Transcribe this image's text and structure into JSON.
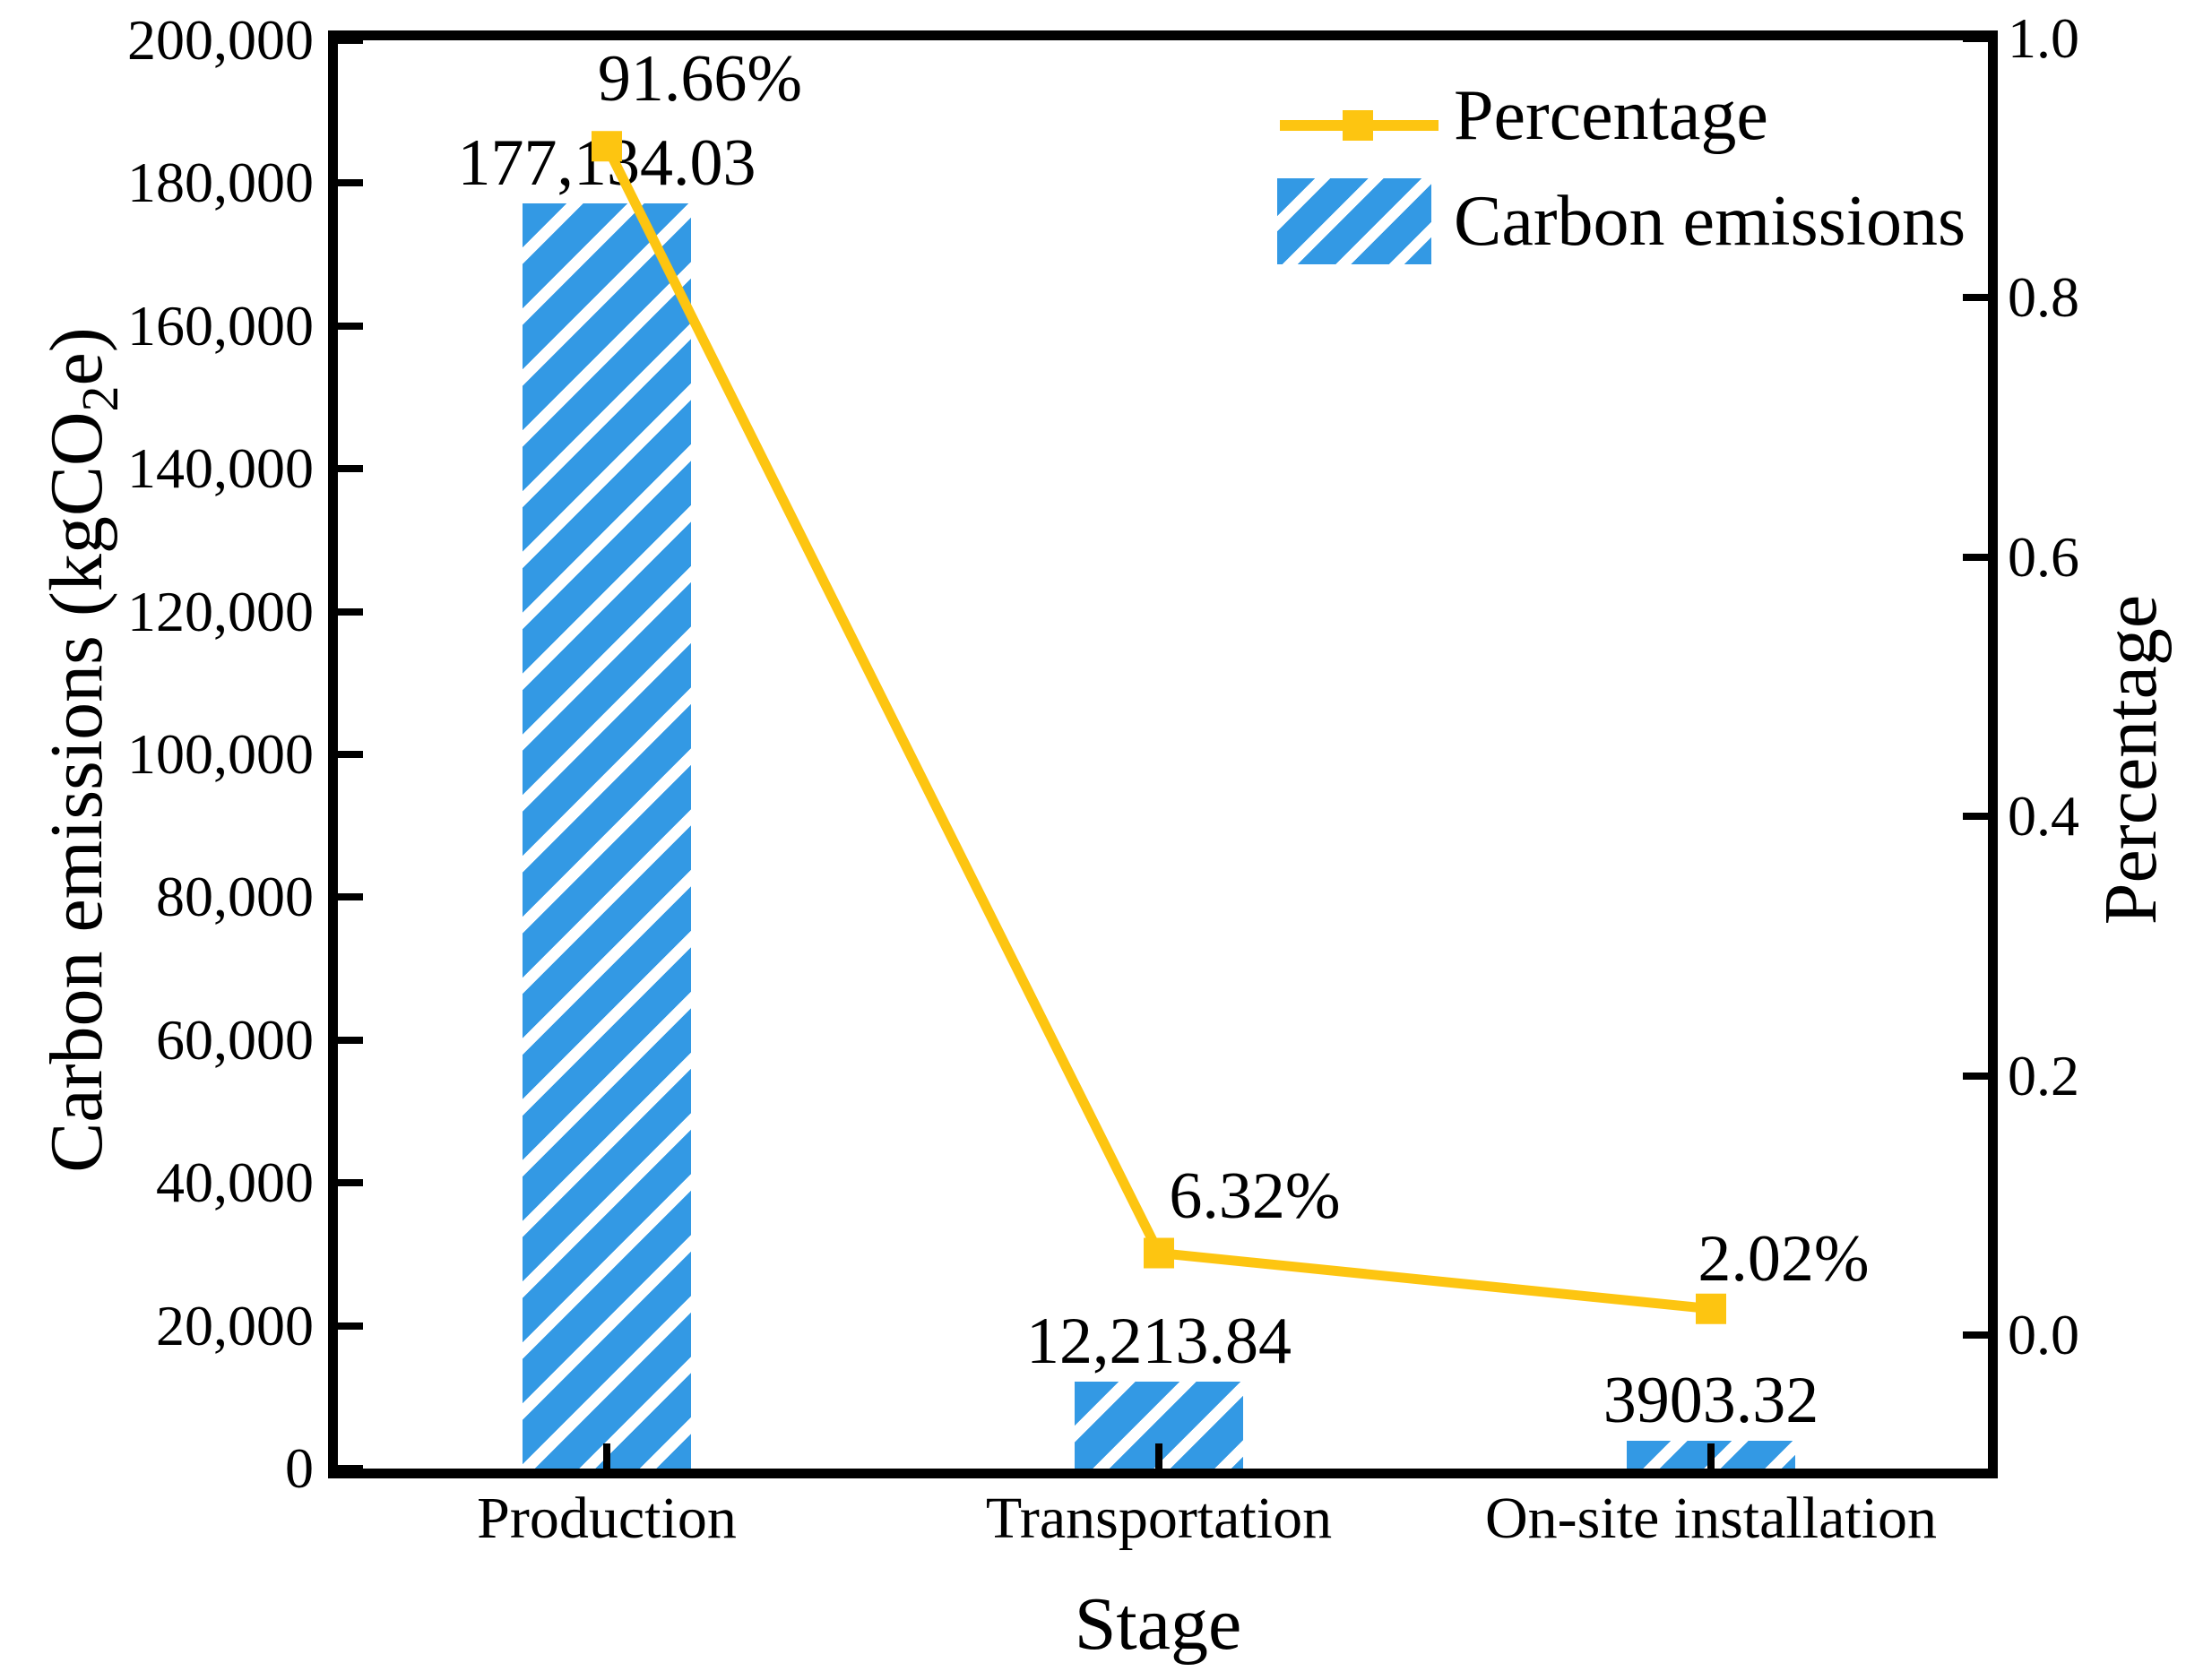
{
  "figure": {
    "background": "#ffffff",
    "text_color": "#000000"
  },
  "axes": {
    "x_title": "Stage",
    "left_title_pre": "Carbon emissions (kgCO",
    "left_title_sub": "2",
    "left_title_post": "e)",
    "right_title": "Percentage",
    "left_tick_labels": [
      "0",
      "20,000",
      "40,000",
      "60,000",
      "80,000",
      "100,000",
      "120,000",
      "140,000",
      "160,000",
      "180,000",
      "200,000"
    ],
    "left_tick_values": [
      0,
      20000,
      40000,
      60000,
      80000,
      100000,
      120000,
      140000,
      160000,
      180000,
      200000
    ],
    "right_tick_labels": [
      "0.0",
      "0.2",
      "0.4",
      "0.6",
      "0.8",
      "1.0"
    ],
    "right_tick_values": [
      0.0,
      0.2,
      0.4,
      0.6,
      0.8,
      1.0
    ]
  },
  "legend": {
    "items": [
      {
        "label": "Percentage",
        "type": "line",
        "color": "#FDC511"
      },
      {
        "label": "Carbon emissions",
        "type": "hatched-patch",
        "color": "#3399E4"
      }
    ]
  },
  "chart_data": {
    "type": "bar",
    "subtype": "dual-axis bar + line combo",
    "categories": [
      "Production",
      "Transportation",
      "On-site installation"
    ],
    "xlabel": "Stage",
    "ylabel_left": "Carbon emissions (kgCO2e)",
    "ylabel_right": "Percentage",
    "ylim_left": [
      0,
      200000
    ],
    "ylim_right_displayed": [
      -0.1,
      1.005
    ],
    "grid": false,
    "legend_position": "upper right inside plot, frameless",
    "series": [
      {
        "name": "Carbon emissions",
        "type": "bar",
        "axis": "left",
        "color": "#3399E4",
        "hatch": "/",
        "values": [
          177134.03,
          12213.84,
          3903.32
        ],
        "value_labels": [
          "177,134.03",
          "12,213.84",
          "3903.32"
        ]
      },
      {
        "name": "Percentage",
        "type": "line",
        "axis": "right",
        "color": "#FDC511",
        "marker": "square",
        "values": [
          0.9166,
          0.0632,
          0.0202
        ],
        "value_labels": [
          "91.66%",
          "6.32%",
          "2.02%"
        ]
      }
    ]
  }
}
